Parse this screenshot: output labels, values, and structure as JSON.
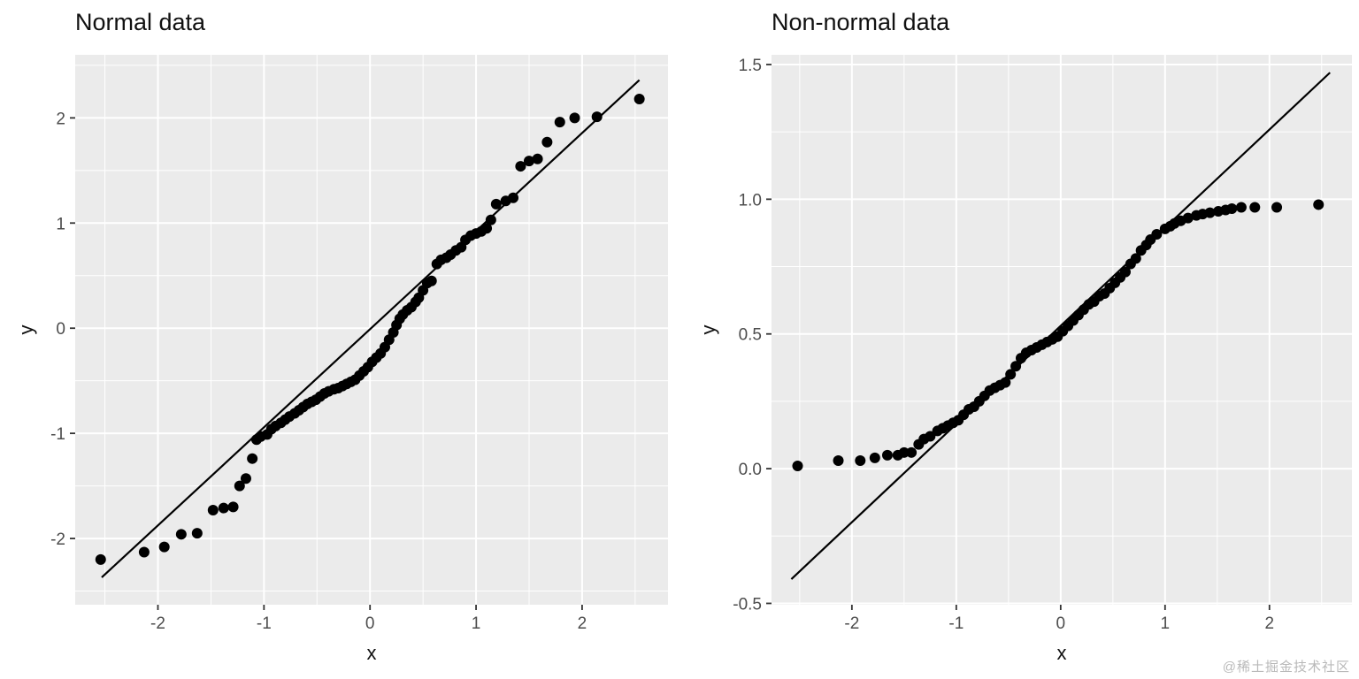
{
  "watermark": {
    "text": "@稀土掘金技术社区"
  },
  "colors": {
    "panel_bg": "#ebebeb",
    "grid_major": "#ffffff",
    "grid_minor": "#ffffff",
    "point": "#000000",
    "ref_line": "#000000",
    "tick_label": "#4d4d4d",
    "tick_mark": "#333333",
    "title": "#111111"
  },
  "chart_data": [
    {
      "type": "scatter",
      "title": "Normal data",
      "xlabel": "x",
      "ylabel": "y",
      "legend": "none",
      "grid": "major+minor",
      "xlim": [
        -2.78,
        2.81
      ],
      "ylim": [
        -2.63,
        2.6
      ],
      "x_ticks": [
        {
          "v": -2,
          "label": "-2"
        },
        {
          "v": -1,
          "label": "-1"
        },
        {
          "v": 0,
          "label": "0"
        },
        {
          "v": 1,
          "label": "1"
        },
        {
          "v": 2,
          "label": "2"
        }
      ],
      "y_ticks": [
        {
          "v": -2,
          "label": "-2"
        },
        {
          "v": -1,
          "label": "-1"
        },
        {
          "v": 0,
          "label": "0"
        },
        {
          "v": 1,
          "label": "1"
        },
        {
          "v": 2,
          "label": "2"
        }
      ],
      "x_minor": [
        -2.5,
        -1.5,
        -0.5,
        0.5,
        1.5,
        2.5
      ],
      "y_minor": [
        -2.5,
        -1.5,
        -0.5,
        0.5,
        1.5,
        2.5
      ],
      "ref_line": {
        "x1": -2.53,
        "y1": -2.37,
        "x2": 2.54,
        "y2": 2.36
      },
      "points": [
        [
          -2.54,
          -2.2
        ],
        [
          -2.13,
          -2.13
        ],
        [
          -1.94,
          -2.08
        ],
        [
          -1.78,
          -1.96
        ],
        [
          -1.63,
          -1.95
        ],
        [
          -1.48,
          -1.73
        ],
        [
          -1.38,
          -1.71
        ],
        [
          -1.29,
          -1.7
        ],
        [
          -1.23,
          -1.5
        ],
        [
          -1.17,
          -1.43
        ],
        [
          -1.11,
          -1.24
        ],
        [
          -1.07,
          -1.06
        ],
        [
          -1.03,
          -1.03
        ],
        [
          -0.97,
          -1.01
        ],
        [
          -0.93,
          -0.96
        ],
        [
          -0.89,
          -0.93
        ],
        [
          -0.84,
          -0.9
        ],
        [
          -0.8,
          -0.87
        ],
        [
          -0.76,
          -0.84
        ],
        [
          -0.71,
          -0.81
        ],
        [
          -0.67,
          -0.78
        ],
        [
          -0.63,
          -0.75
        ],
        [
          -0.59,
          -0.72
        ],
        [
          -0.55,
          -0.7
        ],
        [
          -0.51,
          -0.68
        ],
        [
          -0.47,
          -0.65
        ],
        [
          -0.43,
          -0.62
        ],
        [
          -0.39,
          -0.6
        ],
        [
          -0.34,
          -0.58
        ],
        [
          -0.3,
          -0.57
        ],
        [
          -0.26,
          -0.55
        ],
        [
          -0.22,
          -0.53
        ],
        [
          -0.18,
          -0.51
        ],
        [
          -0.14,
          -0.49
        ],
        [
          -0.1,
          -0.45
        ],
        [
          -0.06,
          -0.41
        ],
        [
          -0.02,
          -0.37
        ],
        [
          0.02,
          -0.32
        ],
        [
          0.06,
          -0.28
        ],
        [
          0.1,
          -0.24
        ],
        [
          0.14,
          -0.18
        ],
        [
          0.18,
          -0.11
        ],
        [
          0.22,
          -0.04
        ],
        [
          0.25,
          0.03
        ],
        [
          0.28,
          0.09
        ],
        [
          0.31,
          0.13
        ],
        [
          0.35,
          0.17
        ],
        [
          0.39,
          0.2
        ],
        [
          0.43,
          0.25
        ],
        [
          0.46,
          0.29
        ],
        [
          0.5,
          0.36
        ],
        [
          0.54,
          0.43
        ],
        [
          0.58,
          0.45
        ],
        [
          0.63,
          0.61
        ],
        [
          0.67,
          0.65
        ],
        [
          0.72,
          0.67
        ],
        [
          0.76,
          0.7
        ],
        [
          0.81,
          0.74
        ],
        [
          0.86,
          0.77
        ],
        [
          0.9,
          0.84
        ],
        [
          0.95,
          0.88
        ],
        [
          1.0,
          0.9
        ],
        [
          1.05,
          0.92
        ],
        [
          1.1,
          0.95
        ],
        [
          1.14,
          1.03
        ],
        [
          1.19,
          1.18
        ],
        [
          1.28,
          1.21
        ],
        [
          1.35,
          1.24
        ],
        [
          1.42,
          1.54
        ],
        [
          1.5,
          1.59
        ],
        [
          1.58,
          1.61
        ],
        [
          1.67,
          1.77
        ],
        [
          1.79,
          1.96
        ],
        [
          1.93,
          2.0
        ],
        [
          2.14,
          2.01
        ],
        [
          2.54,
          2.18
        ]
      ]
    },
    {
      "type": "scatter",
      "title": "Non-normal data",
      "xlabel": "x",
      "ylabel": "y",
      "legend": "none",
      "grid": "major+minor",
      "xlim": [
        -2.77,
        2.79
      ],
      "ylim": [
        -0.505,
        1.536
      ],
      "x_ticks": [
        {
          "v": -2,
          "label": "-2"
        },
        {
          "v": -1,
          "label": "-1"
        },
        {
          "v": 0,
          "label": "0"
        },
        {
          "v": 1,
          "label": "1"
        },
        {
          "v": 2,
          "label": "2"
        }
      ],
      "y_ticks": [
        {
          "v": -0.5,
          "label": "-0.5"
        },
        {
          "v": 0,
          "label": "0.0"
        },
        {
          "v": 0.5,
          "label": "0.5"
        },
        {
          "v": 1,
          "label": "1.0"
        },
        {
          "v": 1.5,
          "label": "1.5"
        }
      ],
      "x_minor": [
        -2.5,
        -1.5,
        -0.5,
        0.5,
        1.5,
        2.5
      ],
      "y_minor": [
        -0.25,
        0.25,
        0.75,
        1.25
      ],
      "ref_line": {
        "x1": -2.58,
        "y1": -0.41,
        "x2": 2.58,
        "y2": 1.47
      },
      "points": [
        [
          -2.52,
          0.01
        ],
        [
          -2.13,
          0.03
        ],
        [
          -1.92,
          0.03
        ],
        [
          -1.78,
          0.04
        ],
        [
          -1.66,
          0.05
        ],
        [
          -1.56,
          0.05
        ],
        [
          -1.5,
          0.06
        ],
        [
          -1.43,
          0.06
        ],
        [
          -1.36,
          0.09
        ],
        [
          -1.31,
          0.11
        ],
        [
          -1.25,
          0.12
        ],
        [
          -1.18,
          0.14
        ],
        [
          -1.13,
          0.15
        ],
        [
          -1.08,
          0.16
        ],
        [
          -1.03,
          0.17
        ],
        [
          -0.98,
          0.18
        ],
        [
          -0.93,
          0.2
        ],
        [
          -0.88,
          0.22
        ],
        [
          -0.83,
          0.23
        ],
        [
          -0.78,
          0.25
        ],
        [
          -0.73,
          0.27
        ],
        [
          -0.68,
          0.29
        ],
        [
          -0.63,
          0.3
        ],
        [
          -0.58,
          0.31
        ],
        [
          -0.53,
          0.32
        ],
        [
          -0.48,
          0.35
        ],
        [
          -0.43,
          0.38
        ],
        [
          -0.38,
          0.41
        ],
        [
          -0.33,
          0.43
        ],
        [
          -0.28,
          0.44
        ],
        [
          -0.23,
          0.45
        ],
        [
          -0.18,
          0.46
        ],
        [
          -0.13,
          0.47
        ],
        [
          -0.08,
          0.48
        ],
        [
          -0.03,
          0.49
        ],
        [
          0.02,
          0.51
        ],
        [
          0.07,
          0.53
        ],
        [
          0.12,
          0.55
        ],
        [
          0.17,
          0.57
        ],
        [
          0.22,
          0.59
        ],
        [
          0.27,
          0.61
        ],
        [
          0.32,
          0.62
        ],
        [
          0.37,
          0.64
        ],
        [
          0.42,
          0.65
        ],
        [
          0.47,
          0.67
        ],
        [
          0.52,
          0.69
        ],
        [
          0.57,
          0.71
        ],
        [
          0.62,
          0.73
        ],
        [
          0.67,
          0.76
        ],
        [
          0.72,
          0.78
        ],
        [
          0.77,
          0.81
        ],
        [
          0.82,
          0.83
        ],
        [
          0.86,
          0.85
        ],
        [
          0.92,
          0.87
        ],
        [
          1.0,
          0.89
        ],
        [
          1.05,
          0.9
        ],
        [
          1.09,
          0.91
        ],
        [
          1.15,
          0.92
        ],
        [
          1.22,
          0.93
        ],
        [
          1.3,
          0.94
        ],
        [
          1.36,
          0.945
        ],
        [
          1.43,
          0.95
        ],
        [
          1.51,
          0.955
        ],
        [
          1.58,
          0.96
        ],
        [
          1.64,
          0.965
        ],
        [
          1.73,
          0.97
        ],
        [
          1.86,
          0.97
        ],
        [
          2.07,
          0.97
        ],
        [
          2.47,
          0.98
        ]
      ]
    }
  ]
}
